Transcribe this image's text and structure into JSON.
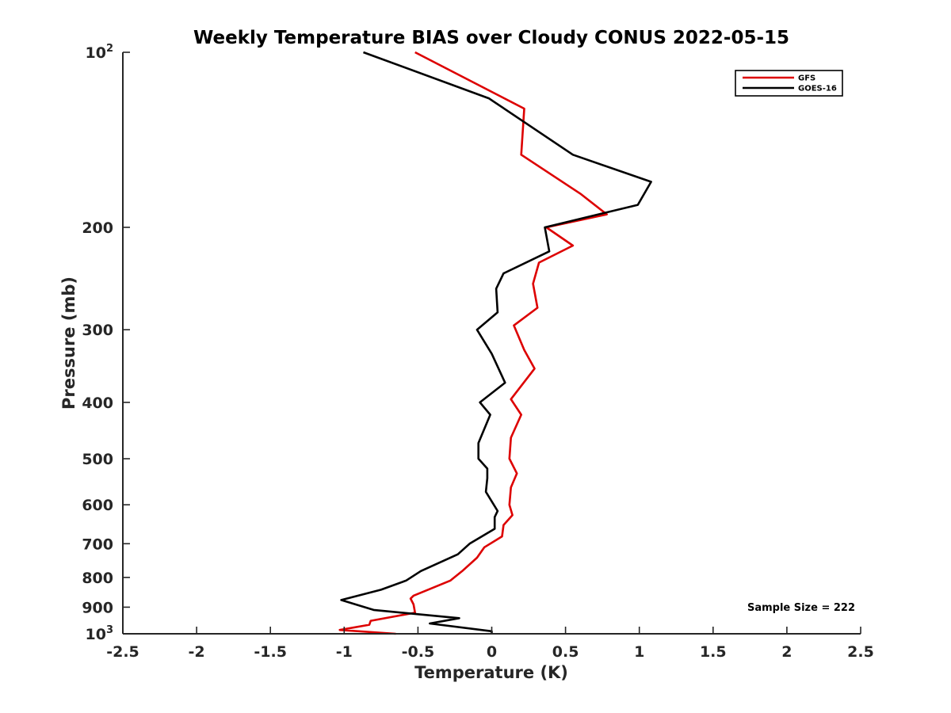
{
  "chart_data": {
    "type": "line",
    "title": "Weekly Temperature BIAS over Cloudy CONUS 2022-05-15",
    "xlabel": "Temperature (K)",
    "ylabel": "Pressure (mb)",
    "xlim": [
      -2.5,
      2.5
    ],
    "ylim": [
      100,
      1000
    ],
    "y_scale": "log",
    "y_reversed": true,
    "x_ticks": [
      "-2.5",
      "-2",
      "-1.5",
      "-1",
      "-0.5",
      "0",
      "0.5",
      "1",
      "1.5",
      "2",
      "2.5"
    ],
    "y_ticks": [
      {
        "value": 100,
        "base": "10",
        "exp": "2"
      },
      {
        "value": 200,
        "label": "200"
      },
      {
        "value": 300,
        "label": "300"
      },
      {
        "value": 400,
        "label": "400"
      },
      {
        "value": 500,
        "label": "500"
      },
      {
        "value": 600,
        "label": "600"
      },
      {
        "value": 700,
        "label": "700"
      },
      {
        "value": 800,
        "label": "800"
      },
      {
        "value": 900,
        "label": "900"
      },
      {
        "value": 1000,
        "base": "10",
        "exp": "3"
      }
    ],
    "legend_position": "top-right",
    "grid": false,
    "annotation": "Sample Size = 222",
    "series": [
      {
        "name": "GFS",
        "color": "#dd0000",
        "points": [
          [
            -0.52,
            100
          ],
          [
            0.22,
            125
          ],
          [
            0.2,
            150
          ],
          [
            0.6,
            175
          ],
          [
            0.78,
            190
          ],
          [
            0.37,
            200
          ],
          [
            0.55,
            215
          ],
          [
            0.32,
            230
          ],
          [
            0.28,
            250
          ],
          [
            0.31,
            275
          ],
          [
            0.15,
            295
          ],
          [
            0.22,
            325
          ],
          [
            0.29,
            350
          ],
          [
            0.13,
            395
          ],
          [
            0.2,
            420
          ],
          [
            0.13,
            460
          ],
          [
            0.12,
            500
          ],
          [
            0.17,
            530
          ],
          [
            0.13,
            560
          ],
          [
            0.12,
            600
          ],
          [
            0.14,
            625
          ],
          [
            0.08,
            650
          ],
          [
            0.07,
            680
          ],
          [
            -0.05,
            710
          ],
          [
            -0.1,
            740
          ],
          [
            -0.2,
            780
          ],
          [
            -0.28,
            810
          ],
          [
            -0.53,
            860
          ],
          [
            -0.55,
            870
          ],
          [
            -0.53,
            890
          ],
          [
            -0.52,
            920
          ],
          [
            -0.82,
            950
          ],
          [
            -0.83,
            965
          ],
          [
            -1.03,
            985
          ],
          [
            -0.65,
            1000
          ]
        ]
      },
      {
        "name": "GOES-16",
        "color": "#000000",
        "points": [
          [
            -0.87,
            100
          ],
          [
            -0.02,
            120
          ],
          [
            0.55,
            150
          ],
          [
            1.08,
            167
          ],
          [
            0.99,
            183
          ],
          [
            0.36,
            200
          ],
          [
            0.39,
            220
          ],
          [
            0.08,
            240
          ],
          [
            0.03,
            255
          ],
          [
            0.04,
            280
          ],
          [
            -0.1,
            300
          ],
          [
            0.0,
            330
          ],
          [
            0.09,
            370
          ],
          [
            -0.08,
            400
          ],
          [
            -0.01,
            420
          ],
          [
            -0.09,
            470
          ],
          [
            -0.09,
            500
          ],
          [
            -0.03,
            520
          ],
          [
            -0.03,
            540
          ],
          [
            -0.04,
            570
          ],
          [
            0.04,
            615
          ],
          [
            0.02,
            630
          ],
          [
            0.02,
            660
          ],
          [
            -0.15,
            700
          ],
          [
            -0.23,
            730
          ],
          [
            -0.48,
            780
          ],
          [
            -0.58,
            810
          ],
          [
            -0.75,
            840
          ],
          [
            -1.02,
            875
          ],
          [
            -0.8,
            910
          ],
          [
            -0.22,
            940
          ],
          [
            -0.42,
            960
          ],
          [
            0.0,
            990
          ],
          [
            0.0,
            1000
          ]
        ]
      }
    ]
  }
}
